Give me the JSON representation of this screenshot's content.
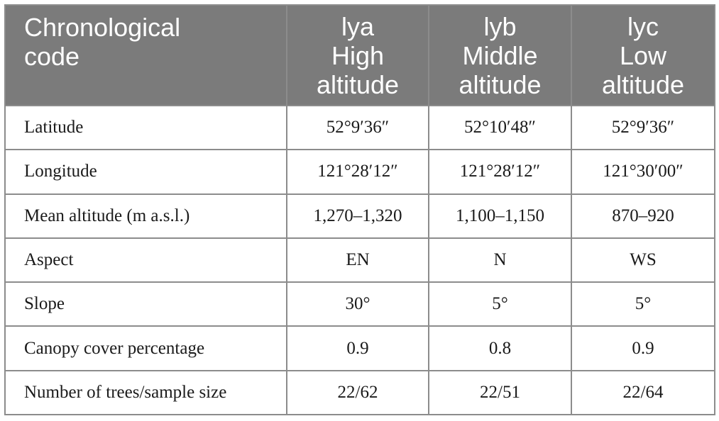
{
  "table": {
    "header": {
      "code_label_line1": "Chronological",
      "code_label_line2": "code",
      "columns": [
        {
          "code": "lya",
          "line2": "High",
          "line3": "altitude"
        },
        {
          "code": "lyb",
          "line2": "Middle",
          "line3": "altitude"
        },
        {
          "code": "lyc",
          "line2": "Low",
          "line3": "altitude"
        }
      ]
    },
    "rows": [
      {
        "label": "Latitude",
        "values": [
          "52°9′36″",
          "52°10′48″",
          "52°9′36″"
        ]
      },
      {
        "label": "Longitude",
        "values": [
          "121°28′12″",
          "121°28′12″",
          "121°30′00″"
        ]
      },
      {
        "label": "Mean altitude (m a.s.l.)",
        "values": [
          "1,270–1,320",
          "1,100–1,150",
          "870–920"
        ]
      },
      {
        "label": "Aspect",
        "values": [
          "EN",
          "N",
          "WS"
        ]
      },
      {
        "label": "Slope",
        "values": [
          "30°",
          "5°",
          "5°"
        ]
      },
      {
        "label": "Canopy cover percentage",
        "values": [
          "0.9",
          "0.8",
          "0.9"
        ]
      },
      {
        "label": "Number of trees/sample size",
        "values": [
          "22/62",
          "22/51",
          "22/64"
        ]
      }
    ],
    "colors": {
      "header_background": "#7b7b7b",
      "header_text": "#ffffff",
      "border": "#8c8c8c"
    }
  }
}
